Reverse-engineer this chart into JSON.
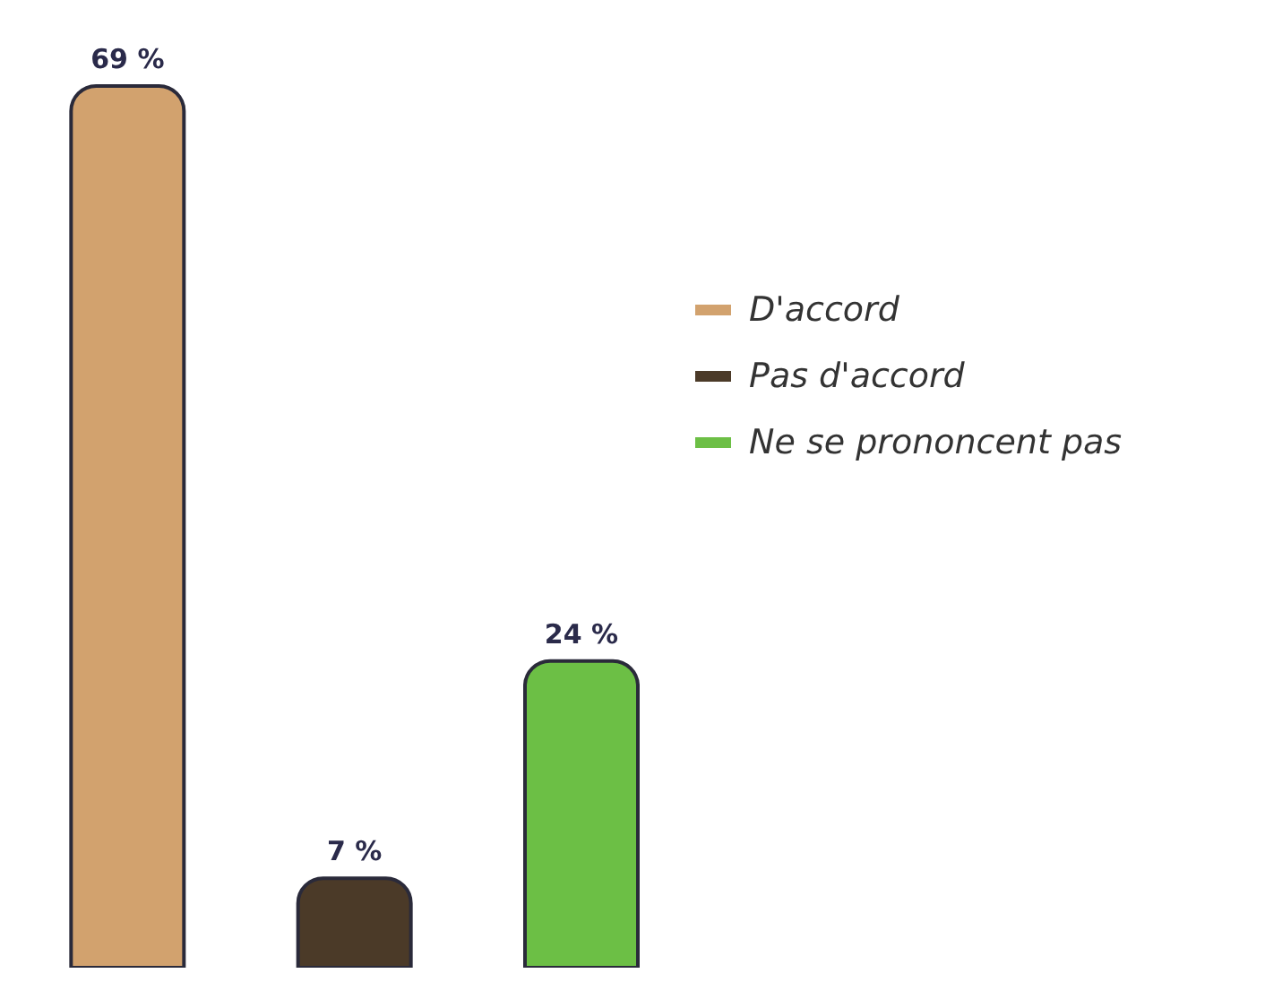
{
  "chart_data": {
    "type": "bar",
    "categories": [
      null,
      null,
      null
    ],
    "stacked": true,
    "legend": "right",
    "tick_labels": false,
    "grid": false,
    "series": [
      {
        "name": "D'accord",
        "color": "#d2a26e",
        "values": [
          69,
          null,
          null
        ],
        "value_labels": [
          "69 %",
          null,
          null
        ]
      },
      {
        "name": "Pas d'accord",
        "color": "#4b3a28",
        "values": [
          null,
          7,
          null
        ],
        "value_labels": [
          null,
          "7 %",
          null
        ]
      },
      {
        "name": "Ne se prononcent pas",
        "color": "#6cbf45",
        "values": [
          null,
          null,
          24
        ],
        "value_labels": [
          null,
          null,
          "24 %"
        ]
      }
    ]
  }
}
